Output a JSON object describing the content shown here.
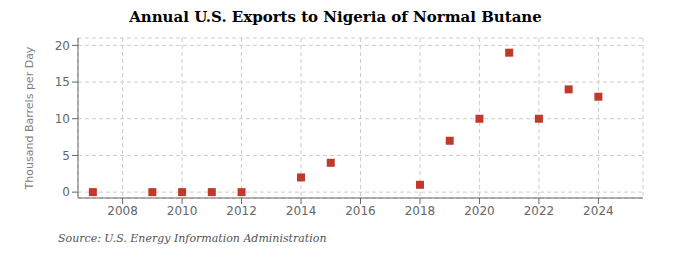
{
  "chart_data": {
    "type": "scatter",
    "title": "Annual U.S. Exports to Nigeria of Normal Butane",
    "ylabel": "Thousand Barrels per Day",
    "annotations": [
      "Source: U.S. Energy Information Administration"
    ],
    "x": [
      2007,
      2009,
      2010,
      2011,
      2012,
      2014,
      2015,
      2018,
      2019,
      2020,
      2021,
      2022,
      2023,
      2024
    ],
    "values": [
      0,
      0,
      0,
      0,
      0,
      2,
      4,
      1,
      7,
      10,
      19,
      10,
      14,
      13
    ],
    "color": "#c0392b",
    "marker": "square",
    "xlim": [
      2006.5,
      2025.5
    ],
    "ylim": [
      -0.8,
      21
    ],
    "xticks": [
      2008,
      2010,
      2012,
      2014,
      2016,
      2018,
      2020,
      2022,
      2024
    ],
    "yticks": [
      0,
      5,
      10,
      15,
      20
    ],
    "grid": true
  }
}
